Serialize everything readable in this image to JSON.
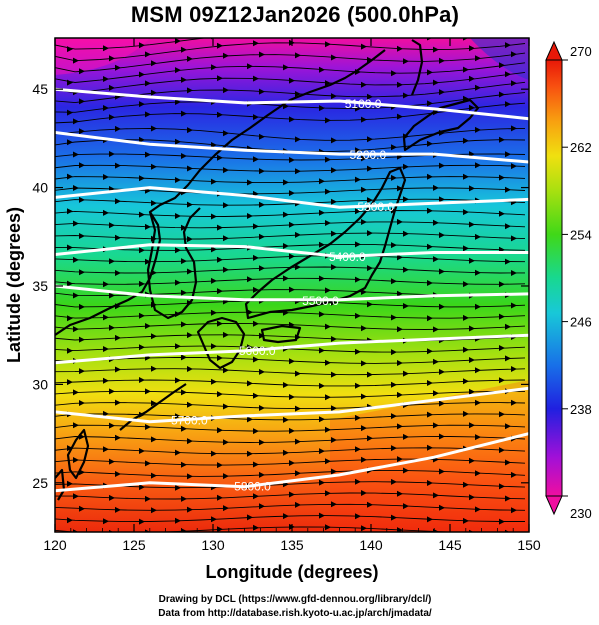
{
  "title": "MSM 09Z12Jan2026 (500.0hPa)",
  "map": {
    "lon_range": [
      120,
      150
    ],
    "lat_range": [
      22.5,
      47.6
    ],
    "xlabel": "Longitude (degrees)",
    "ylabel": "Latitude  (degrees)",
    "xticks": [
      "120",
      "125",
      "130",
      "135",
      "140",
      "145",
      "150"
    ],
    "yticks": [
      "25",
      "30",
      "35",
      "40",
      "45"
    ],
    "shading_variable_range": [
      230,
      270
    ],
    "contour_labels": [
      "5100.0",
      "5200.0",
      "5300.0",
      "5400.0",
      "5500.0",
      "5600.0",
      "5700.0",
      "5800.0"
    ],
    "colors": {
      "frame": "#000000",
      "contour": "#ffffff",
      "coastline": "#000000",
      "streamline": "#000000"
    }
  },
  "colorbar": {
    "tick_labels": [
      "270",
      "262",
      "254",
      "246",
      "238",
      "230"
    ],
    "range": [
      230,
      270
    ],
    "stops": [
      "#f00ea0",
      "#a010d8",
      "#2020e0",
      "#1870e8",
      "#18c8d8",
      "#18d890",
      "#40d818",
      "#a8e010",
      "#f0e010",
      "#f8a010",
      "#f85010",
      "#e81808"
    ]
  },
  "credits": {
    "line1": "Drawing by DCL (https://www.gfd-dennou.org/library/dcl/)",
    "line2": "Data from http://database.rish.kyoto-u.ac.jp/arch/jmadata/"
  }
}
